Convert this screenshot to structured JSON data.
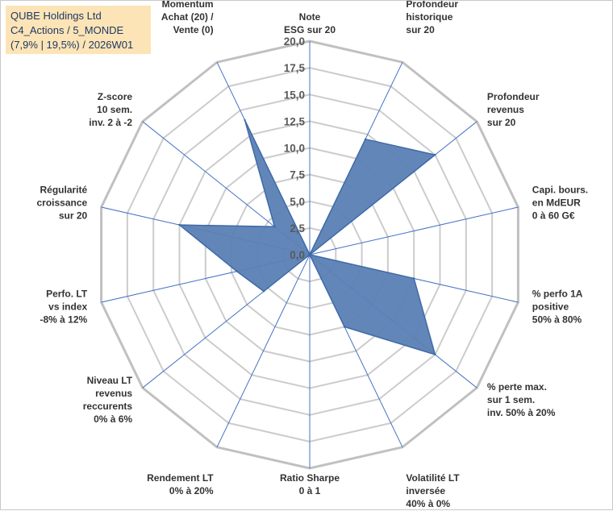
{
  "chart_title": {
    "line1": "QUBE Holdings Ltd",
    "line2": "C4_Actions / 5_MONDE",
    "line3": "(7,9% | 19,5%) / 2026W01"
  },
  "chart_data": {
    "type": "radar",
    "title": "QUBE Holdings Ltd - C4_Actions / 5_MONDE (7,9% | 19,5%) / 2026W01",
    "rmin": 0,
    "rmax": 20,
    "tick_step": 2.5,
    "tick_labels": [
      "0,0",
      "2,5",
      "5,0",
      "7,5",
      "10,0",
      "12,5",
      "15,0",
      "17,5",
      "20,0"
    ],
    "axes": [
      {
        "label": [
          "Note",
          "ESG sur 20"
        ],
        "value": 0
      },
      {
        "label": [
          "Profondeur",
          "historique",
          "sur 20"
        ],
        "value": 12
      },
      {
        "label": [
          "Profondeur",
          "revenus",
          "sur 20"
        ],
        "value": 15
      },
      {
        "label": [
          "Capi. bours.",
          "en MdEUR",
          "0 à 60 G€"
        ],
        "value": 0
      },
      {
        "label": [
          "% perfo 1A",
          "positive",
          "50% à 80%"
        ],
        "value": 10
      },
      {
        "label": [
          "% perte max.",
          "sur 1 sem.",
          "inv. 50% à 20%"
        ],
        "value": 15
      },
      {
        "label": [
          "Volatilité LT",
          "inversée",
          "40% à 0%"
        ],
        "value": 7.5
      },
      {
        "label": [
          "Ratio Sharpe",
          "0 à 1"
        ],
        "value": 0
      },
      {
        "label": [
          "Rendement LT",
          "0% à 20%"
        ],
        "value": 0
      },
      {
        "label": [
          "Niveau LT",
          "revenus",
          "reccurents",
          "0% à 6%"
        ],
        "value": 5.5
      },
      {
        "label": [
          "Perfo. LT",
          "vs index",
          "-8% à 12%"
        ],
        "value": 7
      },
      {
        "label": [
          "Régularité",
          "croissance",
          "sur 20"
        ],
        "value": 12.5
      },
      {
        "label": [
          "Z-score",
          "10 sem.",
          "inv. 2 à -2"
        ],
        "value": 4.2
      },
      {
        "label": [
          "Momentum",
          "Achat (20) /",
          "Vente (0)"
        ],
        "value": 14
      }
    ],
    "colors": {
      "fill": "#5b7fb5",
      "stroke": "#3e6aa8",
      "grid_outer": "#c0c0c0",
      "grid_inner": "#cccccc",
      "spokes": "#4472c4"
    }
  }
}
